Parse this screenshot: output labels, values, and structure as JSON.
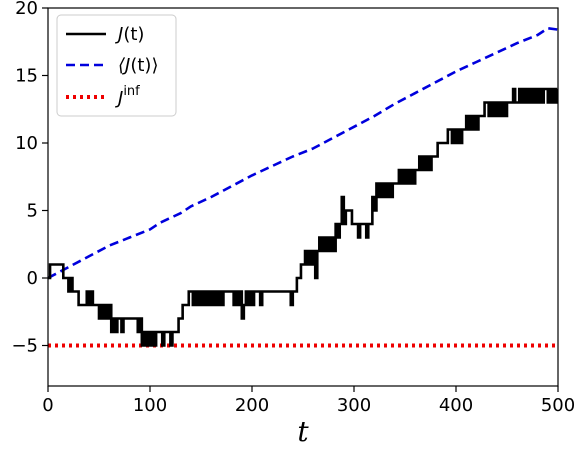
{
  "chart_data": {
    "type": "line",
    "title": "",
    "xlabel": "t",
    "ylabel": "",
    "xlim": [
      0,
      500
    ],
    "ylim": [
      -8,
      20
    ],
    "xticks": [
      0,
      100,
      200,
      300,
      400,
      500
    ],
    "yticks": [
      -5,
      0,
      5,
      10,
      15,
      20
    ],
    "x_tick_labels": [
      "0",
      "100",
      "200",
      "300",
      "400",
      "500"
    ],
    "y_tick_labels": [
      "−5",
      "0",
      "5",
      "10",
      "15",
      "20"
    ],
    "grid": false,
    "legend_position": "top-left",
    "series": [
      {
        "name": "J(t)",
        "label_parts": [
          "J",
          "(t)"
        ],
        "style": "solid",
        "color": "#000000",
        "points": [
          [
            0,
            0
          ],
          [
            2,
            1
          ],
          [
            14,
            1
          ],
          [
            15,
            0
          ],
          [
            18,
            0
          ],
          [
            20,
            -1
          ],
          [
            22,
            0
          ],
          [
            24,
            -1
          ],
          [
            28,
            -1
          ],
          [
            30,
            -2
          ],
          [
            36,
            -2
          ],
          [
            38,
            -1
          ],
          [
            40,
            -2
          ],
          [
            42,
            -1
          ],
          [
            44,
            -2
          ],
          [
            48,
            -2
          ],
          [
            50,
            -3
          ],
          [
            52,
            -2
          ],
          [
            54,
            -3
          ],
          [
            56,
            -2
          ],
          [
            58,
            -3
          ],
          [
            60,
            -2
          ],
          [
            62,
            -4
          ],
          [
            64,
            -3
          ],
          [
            66,
            -4
          ],
          [
            68,
            -3
          ],
          [
            70,
            -3
          ],
          [
            72,
            -4
          ],
          [
            74,
            -3
          ],
          [
            86,
            -3
          ],
          [
            88,
            -4
          ],
          [
            90,
            -3
          ],
          [
            92,
            -5
          ],
          [
            94,
            -4
          ],
          [
            96,
            -5
          ],
          [
            98,
            -4
          ],
          [
            100,
            -5
          ],
          [
            102,
            -4
          ],
          [
            104,
            -5
          ],
          [
            106,
            -4
          ],
          [
            110,
            -4
          ],
          [
            112,
            -5
          ],
          [
            114,
            -4
          ],
          [
            118,
            -4
          ],
          [
            120,
            -5
          ],
          [
            122,
            -4
          ],
          [
            126,
            -4
          ],
          [
            128,
            -3
          ],
          [
            130,
            -3
          ],
          [
            132,
            -2
          ],
          [
            136,
            -2
          ],
          [
            138,
            -1
          ],
          [
            140,
            -1
          ],
          [
            142,
            -2
          ],
          [
            144,
            -1
          ],
          [
            146,
            -2
          ],
          [
            148,
            -1
          ],
          [
            150,
            -2
          ],
          [
            152,
            -1
          ],
          [
            154,
            -2
          ],
          [
            156,
            -1
          ],
          [
            158,
            -2
          ],
          [
            160,
            -1
          ],
          [
            162,
            -2
          ],
          [
            164,
            -1
          ],
          [
            166,
            -2
          ],
          [
            168,
            -1
          ],
          [
            170,
            -2
          ],
          [
            172,
            -1
          ],
          [
            180,
            -1
          ],
          [
            182,
            -2
          ],
          [
            184,
            -1
          ],
          [
            186,
            -2
          ],
          [
            188,
            -1
          ],
          [
            190,
            -3
          ],
          [
            192,
            -2
          ],
          [
            194,
            -1
          ],
          [
            196,
            -2
          ],
          [
            198,
            -1
          ],
          [
            200,
            -2
          ],
          [
            202,
            -1
          ],
          [
            206,
            -1
          ],
          [
            208,
            -2
          ],
          [
            210,
            -1
          ],
          [
            236,
            -1
          ],
          [
            238,
            -2
          ],
          [
            240,
            -1
          ],
          [
            242,
            -1
          ],
          [
            244,
            0
          ],
          [
            246,
            0
          ],
          [
            248,
            1
          ],
          [
            250,
            1
          ],
          [
            252,
            2
          ],
          [
            254,
            1
          ],
          [
            256,
            2
          ],
          [
            258,
            1
          ],
          [
            260,
            2
          ],
          [
            262,
            0
          ],
          [
            264,
            2
          ],
          [
            266,
            3
          ],
          [
            268,
            2
          ],
          [
            270,
            3
          ],
          [
            272,
            2
          ],
          [
            274,
            3
          ],
          [
            276,
            2
          ],
          [
            278,
            3
          ],
          [
            280,
            2
          ],
          [
            282,
            4
          ],
          [
            284,
            3
          ],
          [
            286,
            4
          ],
          [
            288,
            6
          ],
          [
            290,
            4
          ],
          [
            292,
            5
          ],
          [
            294,
            5
          ],
          [
            296,
            5
          ],
          [
            298,
            4
          ],
          [
            300,
            4
          ],
          [
            302,
            4
          ],
          [
            304,
            3
          ],
          [
            306,
            4
          ],
          [
            308,
            4
          ],
          [
            310,
            4
          ],
          [
            312,
            3
          ],
          [
            314,
            4
          ],
          [
            316,
            4
          ],
          [
            318,
            6
          ],
          [
            320,
            5
          ],
          [
            322,
            7
          ],
          [
            324,
            6
          ],
          [
            326,
            7
          ],
          [
            328,
            6
          ],
          [
            330,
            7
          ],
          [
            332,
            6
          ],
          [
            334,
            7
          ],
          [
            336,
            6
          ],
          [
            338,
            7
          ],
          [
            342,
            7
          ],
          [
            344,
            8
          ],
          [
            346,
            7
          ],
          [
            348,
            8
          ],
          [
            350,
            7
          ],
          [
            352,
            8
          ],
          [
            354,
            7
          ],
          [
            356,
            8
          ],
          [
            358,
            7
          ],
          [
            360,
            8
          ],
          [
            362,
            8
          ],
          [
            364,
            9
          ],
          [
            366,
            8
          ],
          [
            368,
            9
          ],
          [
            370,
            8
          ],
          [
            372,
            9
          ],
          [
            374,
            8
          ],
          [
            376,
            9
          ],
          [
            380,
            9
          ],
          [
            382,
            10
          ],
          [
            384,
            10
          ],
          [
            390,
            10
          ],
          [
            392,
            11
          ],
          [
            394,
            11
          ],
          [
            396,
            10
          ],
          [
            398,
            11
          ],
          [
            400,
            10
          ],
          [
            402,
            11
          ],
          [
            404,
            10
          ],
          [
            406,
            11
          ],
          [
            408,
            11
          ],
          [
            410,
            12
          ],
          [
            412,
            11
          ],
          [
            414,
            12
          ],
          [
            416,
            11
          ],
          [
            418,
            12
          ],
          [
            420,
            11
          ],
          [
            422,
            12
          ],
          [
            426,
            12
          ],
          [
            428,
            13
          ],
          [
            430,
            13
          ],
          [
            432,
            12
          ],
          [
            434,
            13
          ],
          [
            436,
            12
          ],
          [
            438,
            13
          ],
          [
            440,
            12
          ],
          [
            442,
            13
          ],
          [
            444,
            12
          ],
          [
            446,
            13
          ],
          [
            448,
            12
          ],
          [
            450,
            13
          ],
          [
            454,
            13
          ],
          [
            456,
            14
          ],
          [
            458,
            13
          ],
          [
            460,
            13
          ],
          [
            462,
            14
          ],
          [
            464,
            13
          ],
          [
            466,
            14
          ],
          [
            468,
            13
          ],
          [
            470,
            14
          ],
          [
            472,
            13
          ],
          [
            474,
            14
          ],
          [
            476,
            13
          ],
          [
            478,
            14
          ],
          [
            480,
            13
          ],
          [
            482,
            14
          ],
          [
            484,
            13
          ],
          [
            486,
            14
          ],
          [
            488,
            14
          ],
          [
            490,
            13
          ],
          [
            492,
            14
          ],
          [
            494,
            13
          ],
          [
            496,
            14
          ],
          [
            498,
            13
          ],
          [
            500,
            14
          ]
        ]
      },
      {
        "name": "⟨J(t)⟩",
        "label_parts": [
          "⟨J",
          "(t)⟩"
        ],
        "style": "dashed",
        "color": "#0000dd",
        "points": [
          [
            0,
            0
          ],
          [
            20,
            0.8
          ],
          [
            40,
            1.6
          ],
          [
            60,
            2.4
          ],
          [
            80,
            3.0
          ],
          [
            100,
            3.6
          ],
          [
            110,
            4.1
          ],
          [
            130,
            4.8
          ],
          [
            140,
            5.3
          ],
          [
            160,
            6.0
          ],
          [
            180,
            6.8
          ],
          [
            200,
            7.6
          ],
          [
            220,
            8.3
          ],
          [
            240,
            9.0
          ],
          [
            260,
            9.6
          ],
          [
            280,
            10.4
          ],
          [
            300,
            11.2
          ],
          [
            320,
            12.0
          ],
          [
            340,
            12.9
          ],
          [
            360,
            13.7
          ],
          [
            380,
            14.5
          ],
          [
            400,
            15.3
          ],
          [
            420,
            16.0
          ],
          [
            440,
            16.7
          ],
          [
            460,
            17.4
          ],
          [
            480,
            18.0
          ],
          [
            490,
            18.5
          ],
          [
            500,
            18.4
          ]
        ]
      },
      {
        "name": "J^inf",
        "label_parts": [
          "J",
          "inf"
        ],
        "style": "dotted",
        "color": "#ee0000",
        "points": [
          [
            0,
            -5
          ],
          [
            500,
            -5
          ]
        ]
      }
    ]
  }
}
